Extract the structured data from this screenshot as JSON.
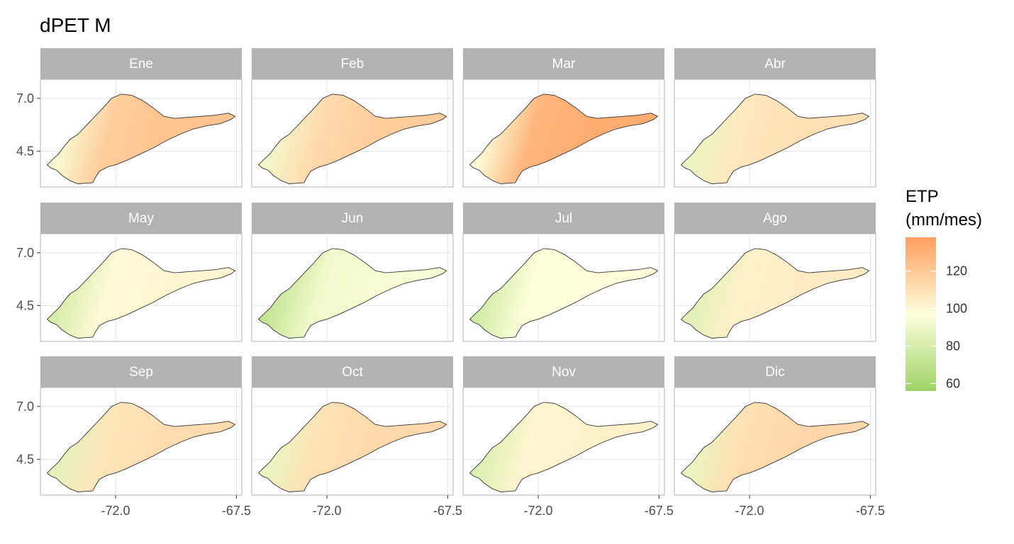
{
  "title": "dPET M",
  "chart_data": {
    "type": "heatmap",
    "panels": [
      {
        "label": "Ene",
        "levels": {
          "west": 94,
          "mid": 118,
          "east": 122
        }
      },
      {
        "label": "Feb",
        "levels": {
          "west": 92,
          "mid": 113,
          "east": 118
        }
      },
      {
        "label": "Mar",
        "levels": {
          "west": 96,
          "mid": 128,
          "east": 132
        }
      },
      {
        "label": "Abr",
        "levels": {
          "west": 88,
          "mid": 107,
          "east": 110
        }
      },
      {
        "label": "May",
        "levels": {
          "west": 80,
          "mid": 99,
          "east": 101
        }
      },
      {
        "label": "Jun",
        "levels": {
          "west": 72,
          "mid": 91,
          "east": 94
        }
      },
      {
        "label": "Jul",
        "levels": {
          "west": 78,
          "mid": 96,
          "east": 98
        }
      },
      {
        "label": "Ago",
        "levels": {
          "west": 84,
          "mid": 103,
          "east": 105
        }
      },
      {
        "label": "Sep",
        "levels": {
          "west": 86,
          "mid": 108,
          "east": 112
        }
      },
      {
        "label": "Oct",
        "levels": {
          "west": 88,
          "mid": 110,
          "east": 113
        }
      },
      {
        "label": "Nov",
        "levels": {
          "west": 82,
          "mid": 101,
          "east": 103
        }
      },
      {
        "label": "Dic",
        "levels": {
          "west": 88,
          "mid": 111,
          "east": 114
        }
      }
    ],
    "x_ticks": [
      "-72.0",
      "-67.5"
    ],
    "x_tick_values": [
      -72.0,
      -67.5
    ],
    "y_ticks": [
      "7.0",
      "4.5"
    ],
    "y_tick_values": [
      7.0,
      4.5
    ],
    "xlim": [
      -74.8,
      -67.3
    ],
    "ylim": [
      2.8,
      7.9
    ],
    "legend": {
      "title_line1": "ETP",
      "title_line2": "(mm/mes)",
      "min": 56,
      "max": 138,
      "ticks": [
        120,
        100,
        80,
        60
      ],
      "tick_labels": [
        "120",
        "100",
        "80",
        "60"
      ],
      "colors": [
        "#9ed465",
        "#ffffdd",
        "#ff9e5e"
      ],
      "placement": "right"
    }
  }
}
